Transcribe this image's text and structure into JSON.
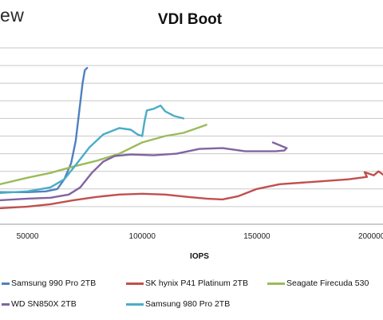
{
  "brand_text": "ew",
  "chart_data": {
    "type": "line",
    "title": "VDI Boot",
    "xlabel": "IOPS",
    "ylabel": "",
    "x_ticks": [
      50000,
      100000,
      150000,
      200000
    ],
    "x_tick_labels": [
      "50000",
      "100000",
      "150000",
      "200000"
    ],
    "xlim": [
      38000,
      205000
    ],
    "ylim": [
      0,
      11
    ],
    "grid": true,
    "legend_position": "bottom",
    "series": [
      {
        "name": "Samsung 990 Pro 2TB",
        "color": "#4F81BD",
        "points": [
          [
            38000,
            2.0
          ],
          [
            50000,
            2.0
          ],
          [
            58000,
            2.05
          ],
          [
            63000,
            2.2
          ],
          [
            66000,
            2.8
          ],
          [
            69000,
            3.8
          ],
          [
            71000,
            5.2
          ],
          [
            72500,
            7.0
          ],
          [
            74000,
            8.8
          ],
          [
            75000,
            9.6
          ],
          [
            76000,
            9.75
          ]
        ]
      },
      {
        "name": "SK hynix P41 Platinum 2TB",
        "color": "#C0504D",
        "points": [
          [
            38000,
            1.0
          ],
          [
            50000,
            1.1
          ],
          [
            60000,
            1.25
          ],
          [
            70000,
            1.5
          ],
          [
            80000,
            1.7
          ],
          [
            90000,
            1.85
          ],
          [
            100000,
            1.9
          ],
          [
            110000,
            1.85
          ],
          [
            120000,
            1.7
          ],
          [
            128000,
            1.6
          ],
          [
            135000,
            1.55
          ],
          [
            142000,
            1.75
          ],
          [
            150000,
            2.2
          ],
          [
            160000,
            2.5
          ],
          [
            175000,
            2.65
          ],
          [
            190000,
            2.8
          ],
          [
            198000,
            2.95
          ],
          [
            197000,
            3.25
          ],
          [
            201000,
            3.05
          ],
          [
            203000,
            3.3
          ],
          [
            205000,
            3.1
          ]
        ]
      },
      {
        "name": "Seagate Firecuda 530",
        "color": "#9BBB59",
        "points": [
          [
            38000,
            2.5
          ],
          [
            50000,
            2.9
          ],
          [
            60000,
            3.2
          ],
          [
            70000,
            3.6
          ],
          [
            80000,
            3.95
          ],
          [
            90000,
            4.4
          ],
          [
            100000,
            5.1
          ],
          [
            110000,
            5.5
          ],
          [
            118000,
            5.7
          ],
          [
            124000,
            6.0
          ],
          [
            128000,
            6.2
          ]
        ]
      },
      {
        "name": "WD SN850X 2TB",
        "color": "#8064A2",
        "points": [
          [
            38000,
            1.5
          ],
          [
            50000,
            1.6
          ],
          [
            60000,
            1.65
          ],
          [
            68000,
            1.85
          ],
          [
            73000,
            2.3
          ],
          [
            78000,
            3.2
          ],
          [
            83000,
            3.9
          ],
          [
            88000,
            4.25
          ],
          [
            95000,
            4.35
          ],
          [
            105000,
            4.3
          ],
          [
            115000,
            4.4
          ],
          [
            125000,
            4.7
          ],
          [
            135000,
            4.75
          ],
          [
            145000,
            4.55
          ],
          [
            152000,
            4.55
          ],
          [
            158000,
            4.55
          ],
          [
            162000,
            4.6
          ],
          [
            163000,
            4.75
          ],
          [
            157000,
            5.1
          ]
        ]
      },
      {
        "name": "Samsung 980 Pro 2TB",
        "color": "#4BACC6",
        "points": [
          [
            38000,
            1.95
          ],
          [
            50000,
            2.05
          ],
          [
            60000,
            2.3
          ],
          [
            66000,
            2.8
          ],
          [
            71000,
            3.7
          ],
          [
            77000,
            4.8
          ],
          [
            83000,
            5.6
          ],
          [
            90000,
            6.0
          ],
          [
            95000,
            5.9
          ],
          [
            98000,
            5.6
          ],
          [
            100000,
            5.5
          ],
          [
            101000,
            6.4
          ],
          [
            102000,
            7.1
          ],
          [
            105000,
            7.2
          ],
          [
            108000,
            7.4
          ],
          [
            110000,
            7.05
          ],
          [
            114000,
            6.75
          ],
          [
            118000,
            6.6
          ]
        ]
      }
    ]
  }
}
